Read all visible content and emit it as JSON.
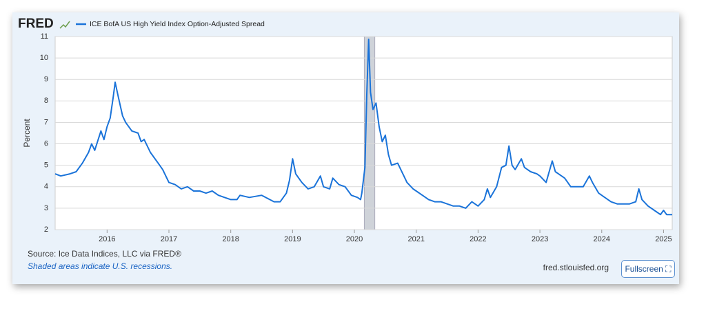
{
  "chart_data": {
    "type": "line",
    "logo": "FRED",
    "ylabel": "Percent",
    "source": "Source: Ice Data Indices, LLC via FRED®",
    "note": "Shaded areas indicate U.S. recessions.",
    "site": "fred.stlouisfed.org",
    "button": "Fullscreen",
    "xlim": [
      2015.16,
      2025.14
    ],
    "xticks": [
      2016,
      2017,
      2018,
      2019,
      2020,
      2021,
      2022,
      2023,
      2024,
      2025
    ],
    "ylim": [
      2,
      11
    ],
    "yticks": [
      2,
      3,
      4,
      5,
      6,
      7,
      8,
      9,
      10,
      11
    ],
    "grid": true,
    "recessions": [
      [
        2020.16,
        2020.33
      ]
    ],
    "recession_color": "#cfd3d9",
    "x": [
      2015.16,
      2015.25,
      2015.4,
      2015.5,
      2015.6,
      2015.7,
      2015.75,
      2015.8,
      2015.9,
      2015.95,
      2016.0,
      2016.05,
      2016.1,
      2016.13,
      2016.18,
      2016.25,
      2016.3,
      2016.4,
      2016.5,
      2016.55,
      2016.6,
      2016.7,
      2016.8,
      2016.85,
      2016.9,
      2017.0,
      2017.1,
      2017.2,
      2017.3,
      2017.4,
      2017.5,
      2017.6,
      2017.7,
      2017.8,
      2017.9,
      2018.0,
      2018.1,
      2018.15,
      2018.3,
      2018.5,
      2018.7,
      2018.8,
      2018.9,
      2018.95,
      2019.0,
      2019.05,
      2019.15,
      2019.25,
      2019.35,
      2019.45,
      2019.5,
      2019.6,
      2019.65,
      2019.75,
      2019.85,
      2019.95,
      2020.05,
      2020.1,
      2020.12,
      2020.17,
      2020.2,
      2020.23,
      2020.26,
      2020.3,
      2020.35,
      2020.4,
      2020.45,
      2020.5,
      2020.55,
      2020.6,
      2020.7,
      2020.8,
      2020.85,
      2020.95,
      2021.0,
      2021.1,
      2021.2,
      2021.3,
      2021.4,
      2021.5,
      2021.6,
      2021.7,
      2021.8,
      2021.9,
      2022.0,
      2022.1,
      2022.15,
      2022.2,
      2022.3,
      2022.38,
      2022.45,
      2022.5,
      2022.55,
      2022.6,
      2022.7,
      2022.75,
      2022.85,
      2022.95,
      2023.0,
      2023.1,
      2023.2,
      2023.25,
      2023.3,
      2023.4,
      2023.5,
      2023.6,
      2023.7,
      2023.8,
      2023.85,
      2023.95,
      2024.05,
      2024.15,
      2024.25,
      2024.35,
      2024.45,
      2024.55,
      2024.6,
      2024.65,
      2024.75,
      2024.85,
      2024.95,
      2025.0,
      2025.05,
      2025.14
    ],
    "series": [
      {
        "name": "ICE BofA US High Yield Index Option-Adjusted Spread",
        "color": "#1a73d9",
        "values": [
          4.6,
          4.5,
          4.6,
          4.7,
          5.1,
          5.6,
          6.0,
          5.7,
          6.6,
          6.2,
          6.8,
          7.2,
          8.2,
          8.87,
          8.2,
          7.3,
          7.0,
          6.6,
          6.5,
          6.1,
          6.2,
          5.6,
          5.2,
          5.0,
          4.8,
          4.2,
          4.1,
          3.9,
          4.0,
          3.8,
          3.8,
          3.7,
          3.8,
          3.6,
          3.5,
          3.4,
          3.4,
          3.6,
          3.5,
          3.6,
          3.3,
          3.3,
          3.7,
          4.3,
          5.3,
          4.6,
          4.2,
          3.9,
          4.0,
          4.5,
          4.0,
          3.9,
          4.4,
          4.1,
          4.0,
          3.6,
          3.5,
          3.4,
          3.7,
          4.9,
          8.3,
          10.87,
          8.4,
          7.6,
          7.9,
          6.8,
          6.1,
          6.4,
          5.5,
          5.0,
          5.1,
          4.5,
          4.2,
          3.9,
          3.8,
          3.6,
          3.4,
          3.3,
          3.3,
          3.2,
          3.1,
          3.1,
          3.0,
          3.3,
          3.1,
          3.4,
          3.9,
          3.5,
          4.0,
          4.9,
          5.0,
          5.9,
          5.0,
          4.8,
          5.3,
          4.9,
          4.7,
          4.6,
          4.5,
          4.2,
          5.2,
          4.7,
          4.6,
          4.4,
          4.0,
          4.0,
          4.0,
          4.5,
          4.2,
          3.7,
          3.5,
          3.3,
          3.2,
          3.2,
          3.2,
          3.3,
          3.9,
          3.4,
          3.1,
          2.9,
          2.7,
          2.9,
          2.7,
          2.7
        ]
      }
    ]
  }
}
